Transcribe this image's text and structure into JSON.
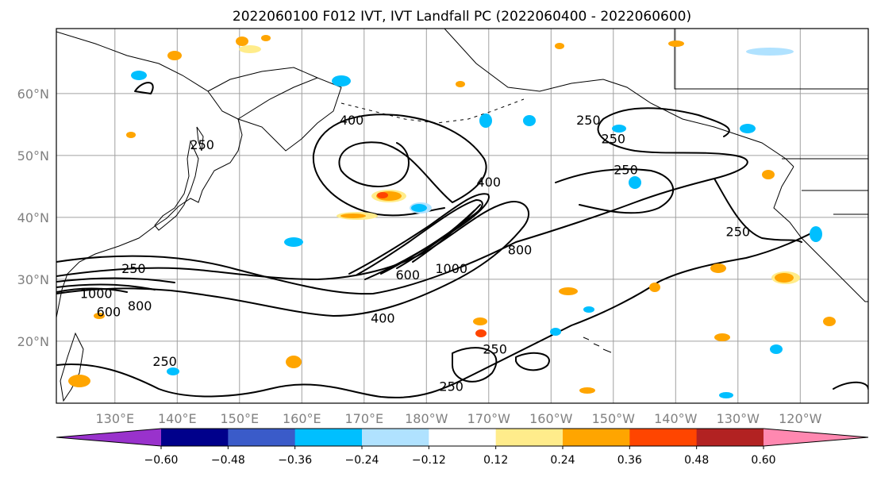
{
  "title": "2022060100 F012 IVT, IVT Landfall PC (2022060400 - 2022060600)",
  "map": {
    "lat_labels": [
      "60°N",
      "50°N",
      "40°N",
      "30°N",
      "20°N"
    ],
    "lon_labels": [
      "130°E",
      "140°E",
      "150°E",
      "160°E",
      "170°E",
      "180°W",
      "170°W",
      "160°W",
      "150°W",
      "140°W",
      "130°W",
      "120°W"
    ],
    "gridlines": true,
    "contour_labels": [
      {
        "text": "400",
        "lon": 168,
        "lat": 55
      },
      {
        "text": "250",
        "lon": 144,
        "lat": 51
      },
      {
        "text": "250",
        "lon": 206,
        "lat": 55
      },
      {
        "text": "250",
        "lon": 210,
        "lat": 52
      },
      {
        "text": "250",
        "lon": 212,
        "lat": 47
      },
      {
        "text": "250",
        "lon": 230,
        "lat": 37
      },
      {
        "text": "400",
        "lon": 190,
        "lat": 45
      },
      {
        "text": "800",
        "lon": 195,
        "lat": 34
      },
      {
        "text": "1000",
        "lon": 184,
        "lat": 31
      },
      {
        "text": "600",
        "lon": 177,
        "lat": 30
      },
      {
        "text": "400",
        "lon": 173,
        "lat": 23
      },
      {
        "text": "250",
        "lon": 133,
        "lat": 31
      },
      {
        "text": "1000",
        "lon": 127,
        "lat": 27
      },
      {
        "text": "600",
        "lon": 129,
        "lat": 24
      },
      {
        "text": "800",
        "lon": 134,
        "lat": 25
      },
      {
        "text": "250",
        "lon": 191,
        "lat": 18
      },
      {
        "text": "250",
        "lon": 138,
        "lat": 16
      },
      {
        "text": "250",
        "lon": 184,
        "lat": 12
      }
    ]
  },
  "colorbar": {
    "tick_labels": [
      "−0.60",
      "−0.48",
      "−0.36",
      "−0.24",
      "−0.12",
      "0.12",
      "0.24",
      "0.36",
      "0.48",
      "0.60"
    ],
    "boundaries": [
      -0.6,
      -0.48,
      -0.36,
      -0.24,
      -0.12,
      0.12,
      0.24,
      0.36,
      0.48,
      0.6
    ],
    "colors": [
      "#9932cc",
      "#00008b",
      "#3a5bc9",
      "#00bfff",
      "#b0e2ff",
      "#ffffff",
      "#ffec8b",
      "#ffa500",
      "#ff4500",
      "#b22222",
      "#ff88b0"
    ],
    "extend": "both"
  }
}
